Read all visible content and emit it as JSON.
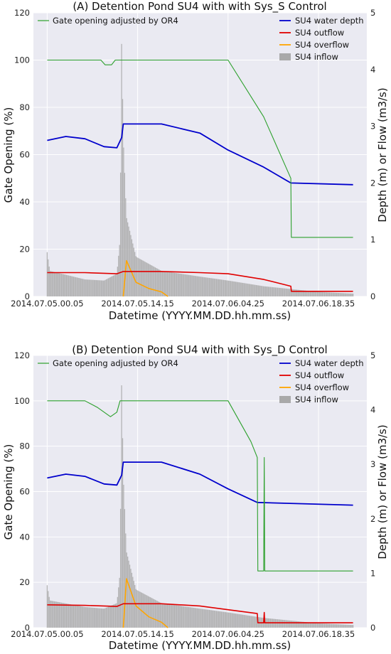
{
  "colors": {
    "gate": "#2ca02c",
    "depth": "#0000cc",
    "outflow": "#e00000",
    "overflow": "#ffa500",
    "inflow": "#a9a9a9",
    "background": "#eaeaf2",
    "grid": "#ffffff"
  },
  "chart_data": [
    {
      "type": "line",
      "title": "(A) Detention Pond SU4 with with Sys_S Control",
      "xlabel": "Datetime (YYYY.MM.DD.hh.mm.ss)",
      "ylabel_left": "Gate Opening (%)",
      "ylabel_right": "Depth (m) or Flow (m3/s)",
      "ylim_left": [
        0,
        120
      ],
      "ylim_right": [
        0,
        5
      ],
      "yticks_left": [
        "0",
        "20",
        "40",
        "60",
        "80",
        "100",
        "120"
      ],
      "yticks_right": [
        "0",
        "1",
        "2",
        "3",
        "4",
        "5"
      ],
      "xticks": [
        "2014.07.05.00.05",
        "2014.07.05.14.15",
        "2014.07.06.04.25",
        "2014.07.06.18.35"
      ],
      "legend_left": [
        "Gate opening adjusted by OR4"
      ],
      "legend_right": [
        "SU4 water depth",
        "SU4 outflow",
        "SU4 overflow",
        "SU4 inflow"
      ],
      "grid": true,
      "series": [
        {
          "name": "Gate opening adjusted by OR4",
          "axis": "left",
          "x": [
            "2014.07.05.00.05",
            "2014.07.05.08.30",
            "2014.07.05.09.10",
            "2014.07.05.10.10",
            "2014.07.05.10.45",
            "2014.07.05.11.30",
            "2014.07.06.00.00",
            "2014.07.06.04.25",
            "2014.07.06.10.00",
            "2014.07.06.14.15",
            "2014.07.06.14.20",
            "2014.07.07.00.00"
          ],
          "y": [
            100,
            100,
            98,
            98,
            100,
            100,
            100,
            100,
            76,
            50,
            25,
            25
          ]
        },
        {
          "name": "SU4 water depth",
          "axis": "right",
          "x": [
            "2014.07.05.00.05",
            "2014.07.05.03.00",
            "2014.07.05.06.00",
            "2014.07.05.09.00",
            "2014.07.05.11.00",
            "2014.07.05.11.45",
            "2014.07.05.12.00",
            "2014.07.05.18.00",
            "2014.07.06.00.00",
            "2014.07.06.04.25",
            "2014.07.06.10.00",
            "2014.07.06.14.15",
            "2014.07.07.00.00"
          ],
          "y": [
            2.75,
            2.82,
            2.78,
            2.64,
            2.62,
            2.8,
            3.04,
            3.04,
            2.88,
            2.58,
            2.28,
            2.0,
            1.97
          ]
        },
        {
          "name": "SU4 outflow",
          "axis": "right",
          "x": [
            "2014.07.05.00.05",
            "2014.07.05.06.00",
            "2014.07.05.11.00",
            "2014.07.05.12.00",
            "2014.07.05.18.00",
            "2014.07.06.00.00",
            "2014.07.06.04.25",
            "2014.07.06.10.00",
            "2014.07.06.14.15",
            "2014.07.06.14.20",
            "2014.07.07.00.00"
          ],
          "y": [
            0.42,
            0.42,
            0.4,
            0.44,
            0.44,
            0.42,
            0.4,
            0.3,
            0.18,
            0.09,
            0.09
          ]
        },
        {
          "name": "SU4 overflow",
          "axis": "right",
          "x": [
            "2014.07.05.12.00",
            "2014.07.05.12.30",
            "2014.07.05.14.00",
            "2014.07.05.16.00",
            "2014.07.05.18.00",
            "2014.07.05.19.00"
          ],
          "y": [
            0.0,
            0.63,
            0.25,
            0.14,
            0.08,
            0.0
          ]
        },
        {
          "name": "SU4 inflow",
          "axis": "right",
          "type": "bar",
          "x": [
            "2014.07.05.00.05",
            "2014.07.05.00.30",
            "2014.07.05.06.00",
            "2014.07.05.09.00",
            "2014.07.05.11.00",
            "2014.07.05.11.30",
            "2014.07.05.11.45",
            "2014.07.05.12.00",
            "2014.07.05.12.30",
            "2014.07.05.14.00",
            "2014.07.05.18.00",
            "2014.07.06.00.00",
            "2014.07.06.04.25",
            "2014.07.06.10.00",
            "2014.07.06.18.35",
            "2014.07.07.00.00"
          ],
          "y": [
            0.78,
            0.45,
            0.3,
            0.28,
            0.4,
            1.0,
            4.55,
            2.8,
            1.4,
            0.7,
            0.45,
            0.35,
            0.28,
            0.18,
            0.08,
            0.05
          ]
        }
      ]
    },
    {
      "type": "line",
      "title": "(B) Detention Pond SU4 with with Sys_D Control",
      "xlabel": "Datetime (YYYY.MM.DD.hh.mm.ss)",
      "ylabel_left": "Gate Opening (%)",
      "ylabel_right": "Depth (m) or Flow (m3/s)",
      "ylim_left": [
        0,
        120
      ],
      "ylim_right": [
        0,
        5
      ],
      "yticks_left": [
        "0",
        "20",
        "40",
        "60",
        "80",
        "100",
        "120"
      ],
      "yticks_right": [
        "0",
        "1",
        "2",
        "3",
        "4",
        "5"
      ],
      "xticks": [
        "2014.07.05.00.05",
        "2014.07.05.14.15",
        "2014.07.06.04.25",
        "2014.07.06.18.35"
      ],
      "legend_left": [
        "Gate opening adjusted by OR4"
      ],
      "legend_right": [
        "SU4 water depth",
        "SU4 outflow",
        "SU4 overflow",
        "SU4 inflow"
      ],
      "grid": true,
      "series": [
        {
          "name": "Gate opening adjusted by OR4",
          "axis": "left",
          "x": [
            "2014.07.05.00.05",
            "2014.07.05.06.00",
            "2014.07.05.08.00",
            "2014.07.05.10.00",
            "2014.07.05.11.00",
            "2014.07.05.11.30",
            "2014.07.06.00.00",
            "2014.07.06.04.25",
            "2014.07.06.08.00",
            "2014.07.06.09.00",
            "2014.07.06.09.05",
            "2014.07.06.10.00",
            "2014.07.06.10.05",
            "2014.07.06.10.10",
            "2014.07.07.00.00"
          ],
          "y": [
            100,
            100,
            97,
            93,
            95,
            100,
            100,
            100,
            82,
            75,
            25,
            25,
            75,
            25,
            25
          ]
        },
        {
          "name": "SU4 water depth",
          "axis": "right",
          "x": [
            "2014.07.05.00.05",
            "2014.07.05.03.00",
            "2014.07.05.06.00",
            "2014.07.05.09.00",
            "2014.07.05.11.00",
            "2014.07.05.11.45",
            "2014.07.05.12.00",
            "2014.07.05.18.00",
            "2014.07.06.00.00",
            "2014.07.06.04.25",
            "2014.07.06.09.00",
            "2014.07.07.00.00"
          ],
          "y": [
            2.75,
            2.82,
            2.78,
            2.64,
            2.62,
            2.8,
            3.04,
            3.04,
            2.82,
            2.55,
            2.3,
            2.25
          ]
        },
        {
          "name": "SU4 outflow",
          "axis": "right",
          "x": [
            "2014.07.05.00.05",
            "2014.07.05.06.00",
            "2014.07.05.11.00",
            "2014.07.05.12.00",
            "2014.07.05.18.00",
            "2014.07.06.00.00",
            "2014.07.06.04.25",
            "2014.07.06.09.00",
            "2014.07.06.09.05",
            "2014.07.06.10.00",
            "2014.07.06.10.05",
            "2014.07.06.10.10",
            "2014.07.07.00.00"
          ],
          "y": [
            0.42,
            0.41,
            0.39,
            0.44,
            0.44,
            0.4,
            0.33,
            0.26,
            0.09,
            0.09,
            0.28,
            0.09,
            0.09
          ]
        },
        {
          "name": "SU4 overflow",
          "axis": "right",
          "x": [
            "2014.07.05.12.00",
            "2014.07.05.12.30",
            "2014.07.05.14.00",
            "2014.07.05.16.00",
            "2014.07.05.18.00",
            "2014.07.05.19.00"
          ],
          "y": [
            0.0,
            0.9,
            0.4,
            0.2,
            0.1,
            0.0
          ]
        },
        {
          "name": "SU4 inflow",
          "axis": "right",
          "type": "bar",
          "x": [
            "2014.07.05.00.05",
            "2014.07.05.00.30",
            "2014.07.05.06.00",
            "2014.07.05.09.00",
            "2014.07.05.11.00",
            "2014.07.05.11.30",
            "2014.07.05.11.45",
            "2014.07.05.12.00",
            "2014.07.05.12.30",
            "2014.07.05.14.00",
            "2014.07.05.18.00",
            "2014.07.06.00.00",
            "2014.07.06.04.25",
            "2014.07.06.10.00",
            "2014.07.06.18.35",
            "2014.07.07.00.00"
          ],
          "y": [
            0.78,
            0.5,
            0.38,
            0.35,
            0.45,
            1.0,
            4.55,
            2.8,
            1.4,
            0.7,
            0.45,
            0.35,
            0.28,
            0.18,
            0.08,
            0.05
          ]
        }
      ]
    }
  ]
}
